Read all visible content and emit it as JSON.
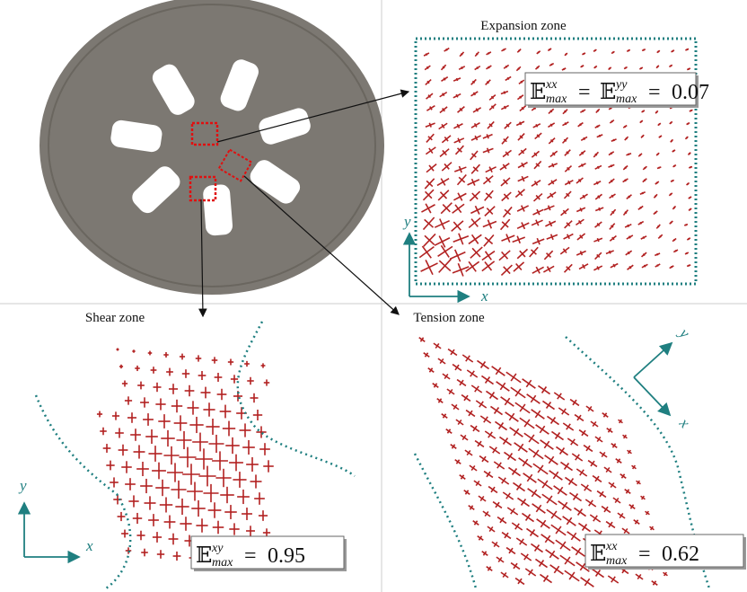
{
  "panels": [
    {
      "title": "Expansion zone",
      "formula": {
        "terms": [
          {
            "symbol": "𝔼",
            "sup": "xx",
            "sub": "max"
          },
          {
            "symbol": "𝔼",
            "sup": "yy",
            "sub": "max"
          }
        ],
        "relation": "=",
        "value": 0.07
      },
      "axes": {
        "x": "x",
        "y": "y"
      }
    },
    {
      "title": "Shear zone",
      "formula": {
        "terms": [
          {
            "symbol": "𝔼",
            "sup": "xy",
            "sub": "max"
          }
        ],
        "relation": "=",
        "value": 0.95
      },
      "axes": {
        "x": "x",
        "y": "y"
      }
    },
    {
      "title": "Tension zone",
      "formula": {
        "terms": [
          {
            "symbol": "𝔼",
            "sup": "xx",
            "sub": "max"
          }
        ],
        "relation": "=",
        "value": 0.62
      },
      "axes": {
        "x": "x",
        "y": "y"
      }
    }
  ]
}
